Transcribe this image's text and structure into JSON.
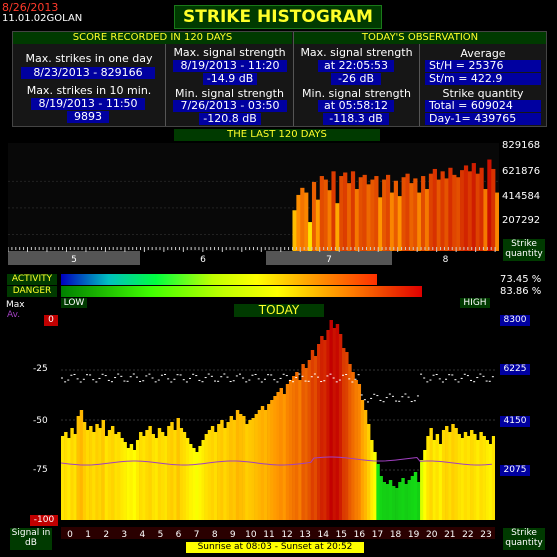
{
  "header": {
    "date": "8/26/2013",
    "version": "11.01.02",
    "station": "GOLAN",
    "title": "STRIKE HISTOGRAM"
  },
  "score": {
    "title": "SCORE RECORDED IN 120 DAYS",
    "max_one_day_label": "Max. strikes in one day",
    "max_one_day_value": "8/23/2013 - 829166",
    "max_ten_min_label": "Max. strikes in 10 min.",
    "max_ten_min_date": "8/19/2013 - 11:50",
    "max_ten_min_value": "9893",
    "max_sig_label": "Max. signal strength",
    "max_sig_date": "8/19/2013 - 11:20",
    "max_sig_value": "-14.9 dB",
    "min_sig_label": "Min. signal strength",
    "min_sig_date": "7/26/2013 - 03:50",
    "min_sig_value": "-120.8 dB"
  },
  "today_obs": {
    "title": "TODAY'S OBSERVATION",
    "max_sig_label": "Max. signal strength",
    "max_sig_time": "at 22:05:53",
    "max_sig_value": "-26 dB",
    "min_sig_label": "Min. signal strength",
    "min_sig_time": "at 05:58:12",
    "min_sig_value": "-118.3 dB",
    "average_label": "Average",
    "st_h": "St/H = 25376",
    "st_m": "St/m = 422.9",
    "quantity_label": "Strike quantity",
    "total": "Total  = 609024",
    "day_minus_1": "Day-1= 439765"
  },
  "last120": {
    "title": "THE LAST 120 DAYS",
    "yticks": [
      "829168",
      "621876",
      "414584",
      "207292"
    ],
    "months": [
      "5",
      "6",
      "7",
      "8"
    ],
    "ylabel": "Strike quantity",
    "values": [
      0,
      0,
      0,
      0,
      0,
      0,
      0,
      0,
      0,
      0,
      0,
      0,
      0,
      0,
      0,
      0,
      0,
      0,
      0,
      0,
      0,
      0,
      0,
      0,
      0,
      0,
      0,
      0,
      0,
      0,
      0,
      0,
      0,
      0,
      0,
      0,
      0,
      0,
      0,
      0,
      0,
      0,
      0,
      0,
      0,
      0,
      0,
      0,
      0,
      0,
      0,
      0,
      0,
      0,
      0,
      0,
      0,
      0,
      0,
      0,
      0,
      0,
      0,
      0,
      0,
      0,
      0,
      0,
      0,
      0,
      0,
      0.08,
      0.05,
      0.43,
      0.56,
      0.62,
      0.58,
      0.33,
      0.67,
      0.52,
      0.72,
      0.69,
      0.6,
      0.76,
      0.49,
      0.72,
      0.75,
      0.66,
      0.76,
      0.61,
      0.71,
      0.73,
      0.65,
      0.69,
      0.72,
      0.54,
      0.69,
      0.73,
      0.58,
      0.68,
      0.55,
      0.71,
      0.74,
      0.66,
      0.7,
      0.58,
      0.72,
      0.61,
      0.74,
      0.78,
      0.69,
      0.76,
      0.7,
      0.79,
      0.73,
      0.71,
      0.77,
      0.81,
      0.76,
      0.83,
      0.74,
      0.79,
      0.61,
      0.86,
      0.78,
      0.58
    ]
  },
  "activity": {
    "label": "ACTIVITY",
    "value": "73.45 %",
    "fraction": 0.7345
  },
  "danger": {
    "label": "DANGER",
    "value": "83.86 %",
    "fraction": 0.8386
  },
  "scale": {
    "low": "LOW",
    "high": "HIGH"
  },
  "today": {
    "title": "TODAY",
    "max_label": "Max",
    "av_label": "Av.",
    "yticks_left": [
      "0",
      "-25",
      "-50",
      "-75",
      "-100"
    ],
    "yticks_right": [
      "8300",
      "6225",
      "4150",
      "2075"
    ],
    "xlabel_left": "Signal in dB",
    "xlabel_right": "Strike quantity",
    "hours": [
      "0",
      "1",
      "2",
      "3",
      "4",
      "5",
      "6",
      "7",
      "8",
      "9",
      "10",
      "11",
      "12",
      "13",
      "14",
      "15",
      "16",
      "17",
      "18",
      "19",
      "20",
      "21",
      "22",
      "23"
    ],
    "sun": "Sunrise at 08:03  -  Sunset at 20:52",
    "values": [
      0.42,
      0.44,
      0.41,
      0.46,
      0.43,
      0.52,
      0.55,
      0.49,
      0.45,
      0.47,
      0.44,
      0.48,
      0.46,
      0.5,
      0.42,
      0.45,
      0.47,
      0.43,
      0.44,
      0.41,
      0.39,
      0.36,
      0.38,
      0.35,
      0.4,
      0.44,
      0.42,
      0.45,
      0.47,
      0.43,
      0.41,
      0.46,
      0.44,
      0.42,
      0.47,
      0.49,
      0.45,
      0.51,
      0.46,
      0.44,
      0.41,
      0.38,
      0.36,
      0.34,
      0.37,
      0.4,
      0.43,
      0.45,
      0.47,
      0.44,
      0.48,
      0.5,
      0.46,
      0.49,
      0.52,
      0.5,
      0.55,
      0.53,
      0.52,
      0.48,
      0.5,
      0.51,
      0.53,
      0.55,
      0.57,
      0.55,
      0.58,
      0.6,
      0.62,
      0.64,
      0.66,
      0.63,
      0.68,
      0.7,
      0.72,
      0.74,
      0.7,
      0.78,
      0.76,
      0.8,
      0.85,
      0.82,
      0.88,
      0.92,
      0.9,
      0.95,
      1.0,
      0.96,
      0.98,
      0.93,
      0.86,
      0.84,
      0.78,
      0.74,
      0.7,
      0.68,
      0.6,
      0.55,
      0.48,
      0.4,
      0.34,
      0.28,
      0.22,
      0.19,
      0.18,
      0.2,
      0.17,
      0.16,
      0.19,
      0.21,
      0.18,
      0.2,
      0.22,
      0.24,
      0.19,
      0.3,
      0.35,
      0.42,
      0.46,
      0.4,
      0.43,
      0.38,
      0.45,
      0.47,
      0.44,
      0.48,
      0.46,
      0.43,
      0.41,
      0.44,
      0.42,
      0.45,
      0.43,
      0.4,
      0.44,
      0.42,
      0.4,
      0.38,
      0.42
    ],
    "colors": {
      "max": "#ffffff",
      "av": "#a040c0"
    }
  }
}
